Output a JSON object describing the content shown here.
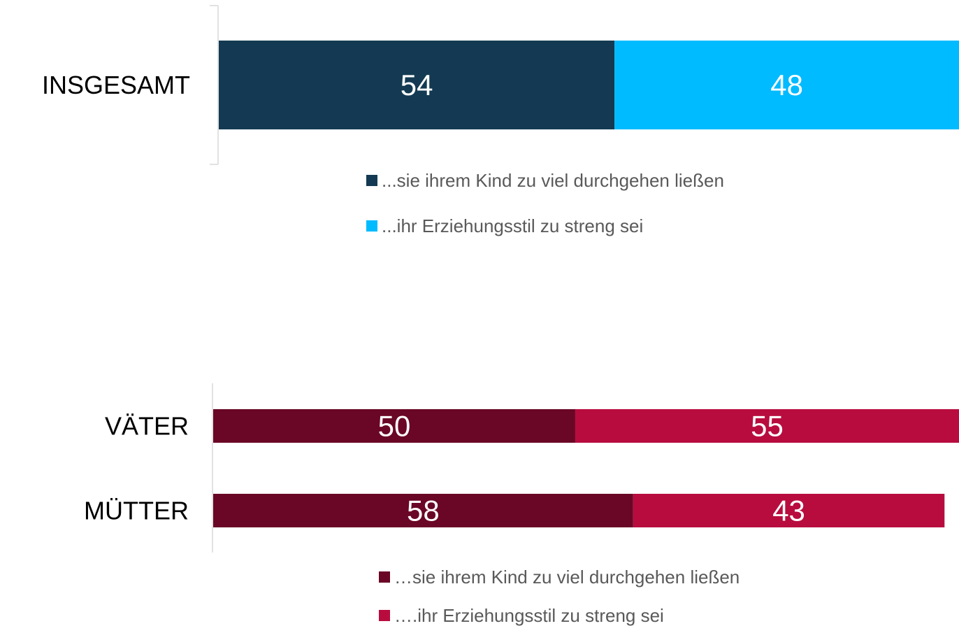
{
  "chart_data": [
    {
      "type": "bar",
      "orientation": "horizontal",
      "stacked": true,
      "categories": [
        "INSGESAMT"
      ],
      "series": [
        {
          "name": "...sie ihrem Kind zu viel durchgehen ließen",
          "color": "#133a52",
          "values": [
            54
          ]
        },
        {
          "name": "...ihr Erziehungsstil zu streng sei",
          "color": "#00bbff",
          "values": [
            48
          ]
        }
      ],
      "xlim": [
        0,
        101
      ]
    },
    {
      "type": "bar",
      "orientation": "horizontal",
      "stacked": true,
      "categories": [
        "VÄTER",
        "MÜTTER"
      ],
      "series": [
        {
          "name": "…sie ihrem Kind zu viel durchgehen ließen",
          "color": "#6a0626",
          "values": [
            50,
            58
          ]
        },
        {
          "name": "….ihr Erziehungsstil zu streng sei",
          "color": "#b80c3f",
          "values": [
            55,
            43
          ]
        }
      ],
      "xlim": [
        0,
        103
      ]
    }
  ]
}
